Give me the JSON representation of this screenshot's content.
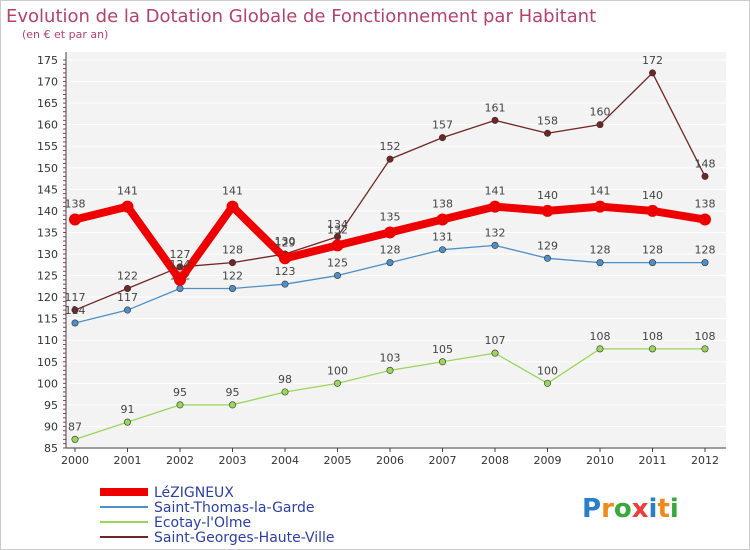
{
  "chart_data": {
    "type": "line",
    "title": "Evolution de la Dotation Globale de Fonctionnement par Habitant",
    "subtitle": "(en € et par an)",
    "x": [
      "2000",
      "2001",
      "2002",
      "2003",
      "2004",
      "2005",
      "2006",
      "2007",
      "2008",
      "2009",
      "2010",
      "2011",
      "2012"
    ],
    "ylim": [
      85,
      175
    ],
    "yticks": [
      85,
      90,
      95,
      100,
      105,
      110,
      115,
      120,
      125,
      130,
      135,
      140,
      145,
      150,
      155,
      160,
      165,
      170,
      175
    ],
    "grid": "horizontal",
    "legend_placement": "bottom-left",
    "series": [
      {
        "name": "Saint-Georges-Haute-Ville",
        "color": "#722525",
        "values": [
          117,
          122,
          127,
          128,
          130,
          134,
          152,
          157,
          161,
          158,
          160,
          172,
          148
        ]
      },
      {
        "name": "Saint-Thomas-la-Garde",
        "color": "#4e8fc7",
        "values": [
          114,
          117,
          122,
          122,
          123,
          125,
          128,
          131,
          132,
          129,
          128,
          128,
          128
        ]
      },
      {
        "name": "Ecotay-l'Olme",
        "color": "#99d65c",
        "values": [
          87,
          91,
          95,
          95,
          98,
          100,
          103,
          105,
          107,
          100,
          108,
          108,
          108
        ]
      },
      {
        "name": "LéZIGNEUX",
        "color": "#ee0000",
        "values": [
          138,
          141,
          124,
          141,
          129,
          132,
          135,
          138,
          141,
          140,
          141,
          140,
          138
        ]
      }
    ],
    "legend_order": [
      "LéZIGNEUX",
      "Saint-Thomas-la-Garde",
      "Ecotay-l'Olme",
      "Saint-Georges-Haute-Ville"
    ]
  },
  "brand": {
    "logo_text": "Proxiti"
  }
}
